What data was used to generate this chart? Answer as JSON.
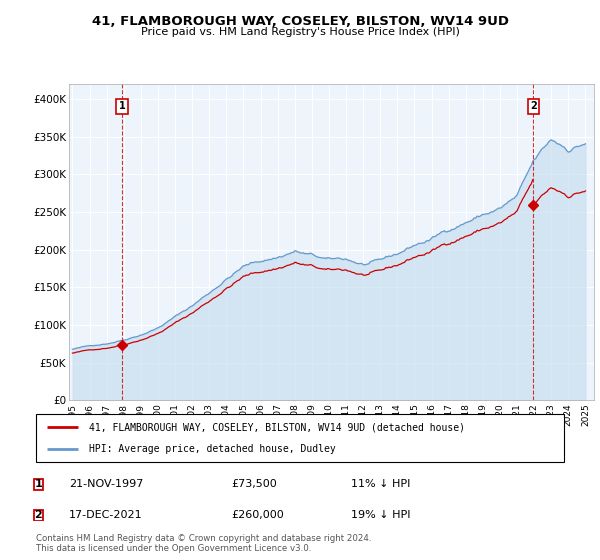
{
  "title": "41, FLAMBOROUGH WAY, COSELEY, BILSTON, WV14 9UD",
  "subtitle": "Price paid vs. HM Land Registry's House Price Index (HPI)",
  "legend_label_red": "41, FLAMBOROUGH WAY, COSELEY, BILSTON, WV14 9UD (detached house)",
  "legend_label_blue": "HPI: Average price, detached house, Dudley",
  "footnote": "Contains HM Land Registry data © Crown copyright and database right 2024.\nThis data is licensed under the Open Government Licence v3.0.",
  "annotation1_date": "21-NOV-1997",
  "annotation1_price": "£73,500",
  "annotation1_hpi": "11% ↓ HPI",
  "annotation2_date": "17-DEC-2021",
  "annotation2_price": "£260,000",
  "annotation2_hpi": "19% ↓ HPI",
  "red_color": "#cc0000",
  "blue_color": "#6699cc",
  "blue_fill_color": "#ddeeff",
  "background_color": "#ffffff",
  "grid_color": "#cccccc",
  "ylim": [
    0,
    420000
  ],
  "yticks": [
    0,
    50000,
    100000,
    150000,
    200000,
    250000,
    300000,
    350000,
    400000
  ],
  "ytick_labels": [
    "£0",
    "£50K",
    "£100K",
    "£150K",
    "£200K",
    "£250K",
    "£300K",
    "£350K",
    "£400K"
  ],
  "sale1_year": 1997.917,
  "sale1_value": 73500,
  "sale2_year": 2021.958,
  "sale2_value": 260000,
  "xtick_years": [
    1995,
    1996,
    1997,
    1998,
    1999,
    2000,
    2001,
    2002,
    2003,
    2004,
    2005,
    2006,
    2007,
    2008,
    2009,
    2010,
    2011,
    2012,
    2013,
    2014,
    2015,
    2016,
    2017,
    2018,
    2019,
    2020,
    2021,
    2022,
    2023,
    2024,
    2025
  ],
  "xlim_min": 1994.8,
  "xlim_max": 2025.5
}
